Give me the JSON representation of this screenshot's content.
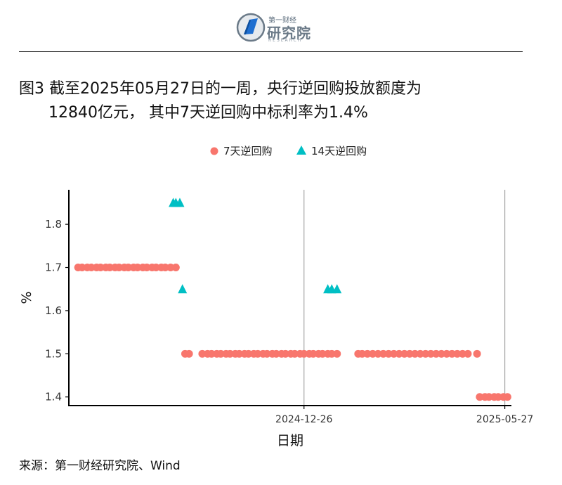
{
  "header": {
    "logo_top": "第一财经",
    "logo_main": "研究院",
    "logo_sub": "RESEARCH"
  },
  "title": {
    "line1": "图3  截至2025年05月27日的一周，央行逆回购投放额度为",
    "line2": "12840亿元， 其中7天逆回购中标利率为1.4%"
  },
  "legend": {
    "items": [
      {
        "label": "7天逆回购",
        "color": "#F8766D",
        "shape": "circle"
      },
      {
        "label": "14天逆回购",
        "color": "#00BFC4",
        "shape": "triangle"
      }
    ]
  },
  "chart_data": {
    "type": "scatter",
    "xlabel": "日期",
    "ylabel": "%",
    "ylim": [
      1.38,
      1.88
    ],
    "y_ticks": [
      1.4,
      1.5,
      1.6,
      1.7,
      1.8
    ],
    "x_range": [
      "2024-07-01",
      "2025-06-01"
    ],
    "x_tick_labels": [
      "2024-12-26",
      "2025-05-27"
    ],
    "vertical_reference_lines": [
      "2024-12-26",
      "2025-05-27"
    ],
    "grid": false,
    "legend_position": "top",
    "series": [
      {
        "name": "7天逆回购",
        "color": "#F8766D",
        "marker": "circle",
        "points": [
          [
            "2024-07-08",
            1.7
          ],
          [
            "2024-07-11",
            1.7
          ],
          [
            "2024-07-15",
            1.7
          ],
          [
            "2024-07-18",
            1.7
          ],
          [
            "2024-07-22",
            1.7
          ],
          [
            "2024-07-25",
            1.7
          ],
          [
            "2024-07-29",
            1.7
          ],
          [
            "2024-08-01",
            1.7
          ],
          [
            "2024-08-05",
            1.7
          ],
          [
            "2024-08-08",
            1.7
          ],
          [
            "2024-08-12",
            1.7
          ],
          [
            "2024-08-15",
            1.7
          ],
          [
            "2024-08-19",
            1.7
          ],
          [
            "2024-08-22",
            1.7
          ],
          [
            "2024-08-26",
            1.7
          ],
          [
            "2024-08-29",
            1.7
          ],
          [
            "2024-09-02",
            1.7
          ],
          [
            "2024-09-05",
            1.7
          ],
          [
            "2024-09-09",
            1.7
          ],
          [
            "2024-09-12",
            1.7
          ],
          [
            "2024-09-16",
            1.7
          ],
          [
            "2024-09-20",
            1.7
          ],
          [
            "2024-09-27",
            1.5
          ],
          [
            "2024-09-30",
            1.5
          ],
          [
            "2024-10-10",
            1.5
          ],
          [
            "2024-10-14",
            1.5
          ],
          [
            "2024-10-17",
            1.5
          ],
          [
            "2024-10-21",
            1.5
          ],
          [
            "2024-10-24",
            1.5
          ],
          [
            "2024-10-28",
            1.5
          ],
          [
            "2024-10-31",
            1.5
          ],
          [
            "2024-11-04",
            1.5
          ],
          [
            "2024-11-07",
            1.5
          ],
          [
            "2024-11-11",
            1.5
          ],
          [
            "2024-11-14",
            1.5
          ],
          [
            "2024-11-18",
            1.5
          ],
          [
            "2024-11-21",
            1.5
          ],
          [
            "2024-11-25",
            1.5
          ],
          [
            "2024-11-28",
            1.5
          ],
          [
            "2024-12-02",
            1.5
          ],
          [
            "2024-12-05",
            1.5
          ],
          [
            "2024-12-09",
            1.5
          ],
          [
            "2024-12-12",
            1.5
          ],
          [
            "2024-12-16",
            1.5
          ],
          [
            "2024-12-19",
            1.5
          ],
          [
            "2024-12-23",
            1.5
          ],
          [
            "2024-12-26",
            1.5
          ],
          [
            "2024-12-30",
            1.5
          ],
          [
            "2025-01-02",
            1.5
          ],
          [
            "2025-01-06",
            1.5
          ],
          [
            "2025-01-09",
            1.5
          ],
          [
            "2025-01-13",
            1.5
          ],
          [
            "2025-01-16",
            1.5
          ],
          [
            "2025-01-20",
            1.5
          ],
          [
            "2025-02-05",
            1.5
          ],
          [
            "2025-02-08",
            1.5
          ],
          [
            "2025-02-12",
            1.5
          ],
          [
            "2025-02-16",
            1.5
          ],
          [
            "2025-02-20",
            1.5
          ],
          [
            "2025-02-24",
            1.5
          ],
          [
            "2025-02-28",
            1.5
          ],
          [
            "2025-03-04",
            1.5
          ],
          [
            "2025-03-08",
            1.5
          ],
          [
            "2025-03-12",
            1.5
          ],
          [
            "2025-03-16",
            1.5
          ],
          [
            "2025-03-20",
            1.5
          ],
          [
            "2025-03-24",
            1.5
          ],
          [
            "2025-03-28",
            1.5
          ],
          [
            "2025-04-01",
            1.5
          ],
          [
            "2025-04-05",
            1.5
          ],
          [
            "2025-04-09",
            1.5
          ],
          [
            "2025-04-13",
            1.5
          ],
          [
            "2025-04-17",
            1.5
          ],
          [
            "2025-04-21",
            1.5
          ],
          [
            "2025-04-25",
            1.5
          ],
          [
            "2025-04-29",
            1.5
          ],
          [
            "2025-05-06",
            1.5
          ],
          [
            "2025-05-08",
            1.4
          ],
          [
            "2025-05-12",
            1.4
          ],
          [
            "2025-05-15",
            1.4
          ],
          [
            "2025-05-19",
            1.4
          ],
          [
            "2025-05-22",
            1.4
          ],
          [
            "2025-05-26",
            1.4
          ],
          [
            "2025-05-29",
            1.4
          ]
        ]
      },
      {
        "name": "14天逆回购",
        "color": "#00BFC4",
        "marker": "triangle",
        "points": [
          [
            "2024-09-18",
            1.85
          ],
          [
            "2024-09-20",
            1.85
          ],
          [
            "2024-09-23",
            1.85
          ],
          [
            "2024-09-25",
            1.65
          ],
          [
            "2025-01-13",
            1.65
          ],
          [
            "2025-01-16",
            1.65
          ],
          [
            "2025-01-20",
            1.65
          ]
        ]
      }
    ]
  },
  "source": "来源：第一财经研究院、Wind"
}
